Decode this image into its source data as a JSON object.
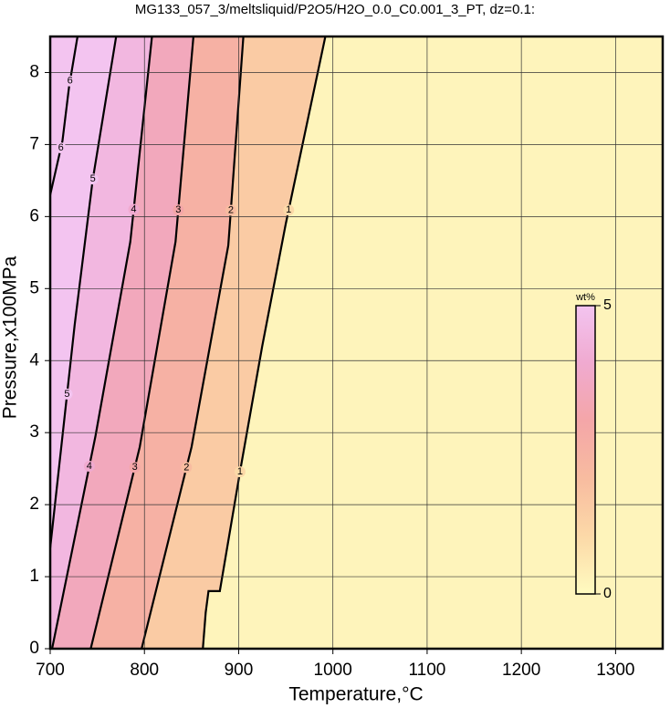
{
  "chart_data": {
    "type": "contour",
    "title": "MG133_057_3/meltsliquid/P2O5/H2O_0.0_C0.001_3_PT, dz=0.1:",
    "x_label": "Temperature,°C",
    "y_label": "Pressure,x100MPa",
    "xlim": [
      700,
      1350
    ],
    "ylim": [
      0,
      8.5
    ],
    "xticks": [
      700,
      800,
      900,
      1000,
      1100,
      1200,
      1300
    ],
    "yticks": [
      0,
      1,
      2,
      3,
      4,
      5,
      6,
      7,
      8
    ],
    "grid": true,
    "contours": [
      {
        "level": 1,
        "x": [
          862,
          865,
          868,
          880,
          902,
          925,
          950,
          992
        ],
        "y": [
          0,
          0.5,
          0.8,
          0.8,
          2.5,
          4.2,
          5.9,
          8.5
        ]
      },
      {
        "level": 2,
        "x": [
          797,
          850,
          889,
          905
        ],
        "y": [
          0,
          2.8,
          5.6,
          8.5
        ]
      },
      {
        "level": 3,
        "x": [
          743,
          795,
          833,
          852
        ],
        "y": [
          0,
          2.8,
          5.65,
          8.5
        ]
      },
      {
        "level": 4,
        "x": [
          702,
          748,
          785,
          808
        ],
        "y": [
          0,
          2.95,
          5.65,
          8.5
        ]
      },
      {
        "level": 5,
        "x": [
          700,
          726,
          745,
          770
        ],
        "y": [
          1.4,
          4.5,
          6.5,
          8.5
        ]
      },
      {
        "level": 6,
        "x": [
          700,
          713,
          720,
          729
        ],
        "y": [
          6.3,
          7.05,
          7.8,
          8.5
        ]
      }
    ],
    "colorbar": {
      "label": "wt%",
      "lim": [
        0,
        5
      ],
      "ticks": [
        0,
        5
      ],
      "colors": [
        "#fffbc0",
        "#fcd9a8",
        "#f8bca0",
        "#f4a6a8",
        "#f0aad0",
        "#f3c4f0"
      ]
    }
  }
}
